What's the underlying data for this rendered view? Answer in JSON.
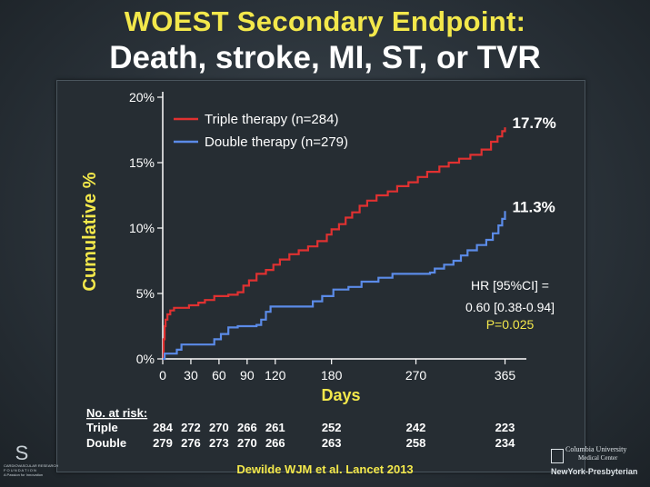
{
  "slide": {
    "title_line1": "WOEST Secondary Endpoint:",
    "title_line2": "Death, stroke, MI, ST, or TVR",
    "citation": "Dewilde WJM et al. Lancet 2013"
  },
  "logos": {
    "left_glyph": "S",
    "left_line1": "CARDIOVASCULAR RESEARCH",
    "left_line2": "F O U N D A T I O N",
    "left_line3": "A Passion for Innovation",
    "right_line1": "Columbia University",
    "right_line2": "Medical Center",
    "right_line3": "NewYork-Presbyterian"
  },
  "colors": {
    "triple": "#e03131",
    "double": "#5b8be8",
    "axis_text": "#ffffff",
    "accent_yellow": "#f3e84b"
  },
  "chart_data": {
    "type": "line",
    "title": "",
    "xlabel": "Days",
    "ylabel": "Cumulative %",
    "x_ticks": [
      0,
      30,
      60,
      90,
      120,
      180,
      270,
      365
    ],
    "y_ticks": [
      "0%",
      "5%",
      "10%",
      "15%",
      "20%"
    ],
    "y_tick_values": [
      0,
      5,
      10,
      15,
      20
    ],
    "xlim": [
      0,
      380
    ],
    "ylim": [
      0,
      20
    ],
    "legend_position": "top-left",
    "series": [
      {
        "name": "Triple therapy (n=284)",
        "color": "#e03131",
        "end_label": "17.7%",
        "points": [
          [
            0,
            0
          ],
          [
            1,
            1.5
          ],
          [
            2,
            2.5
          ],
          [
            3,
            3.0
          ],
          [
            5,
            3.4
          ],
          [
            8,
            3.7
          ],
          [
            12,
            3.9
          ],
          [
            20,
            3.9
          ],
          [
            28,
            4.1
          ],
          [
            38,
            4.3
          ],
          [
            45,
            4.5
          ],
          [
            55,
            4.8
          ],
          [
            70,
            4.9
          ],
          [
            80,
            5.1
          ],
          [
            86,
            5.6
          ],
          [
            92,
            6.0
          ],
          [
            100,
            6.5
          ],
          [
            110,
            6.8
          ],
          [
            118,
            7.2
          ],
          [
            125,
            7.6
          ],
          [
            135,
            8.0
          ],
          [
            145,
            8.3
          ],
          [
            155,
            8.6
          ],
          [
            165,
            9.0
          ],
          [
            175,
            9.5
          ],
          [
            180,
            9.9
          ],
          [
            188,
            10.3
          ],
          [
            195,
            10.8
          ],
          [
            202,
            11.2
          ],
          [
            210,
            11.7
          ],
          [
            218,
            12.1
          ],
          [
            228,
            12.5
          ],
          [
            240,
            12.8
          ],
          [
            250,
            13.2
          ],
          [
            262,
            13.5
          ],
          [
            272,
            13.9
          ],
          [
            282,
            14.3
          ],
          [
            295,
            14.7
          ],
          [
            305,
            15.0
          ],
          [
            316,
            15.3
          ],
          [
            328,
            15.6
          ],
          [
            340,
            16.0
          ],
          [
            350,
            16.6
          ],
          [
            357,
            17.0
          ],
          [
            362,
            17.4
          ],
          [
            365,
            17.7
          ]
        ]
      },
      {
        "name": "Double therapy (n=279)",
        "color": "#5b8be8",
        "end_label": "11.3%",
        "points": [
          [
            0,
            0
          ],
          [
            2,
            0.4
          ],
          [
            10,
            0.4
          ],
          [
            15,
            0.7
          ],
          [
            20,
            1.1
          ],
          [
            40,
            1.1
          ],
          [
            55,
            1.5
          ],
          [
            62,
            1.9
          ],
          [
            70,
            2.4
          ],
          [
            80,
            2.5
          ],
          [
            100,
            2.6
          ],
          [
            105,
            3.0
          ],
          [
            110,
            3.6
          ],
          [
            115,
            4.0
          ],
          [
            130,
            4.0
          ],
          [
            145,
            4.0
          ],
          [
            160,
            4.4
          ],
          [
            170,
            4.8
          ],
          [
            182,
            5.3
          ],
          [
            198,
            5.5
          ],
          [
            212,
            5.9
          ],
          [
            230,
            6.2
          ],
          [
            245,
            6.5
          ],
          [
            260,
            6.5
          ],
          [
            270,
            6.5
          ],
          [
            285,
            6.6
          ],
          [
            290,
            6.9
          ],
          [
            300,
            7.2
          ],
          [
            310,
            7.5
          ],
          [
            318,
            7.9
          ],
          [
            325,
            8.3
          ],
          [
            335,
            8.7
          ],
          [
            345,
            9.1
          ],
          [
            352,
            9.6
          ],
          [
            358,
            10.2
          ],
          [
            362,
            10.7
          ],
          [
            365,
            11.3
          ]
        ]
      }
    ],
    "annotation": {
      "hr_line1": "HR [95%CI] =",
      "hr_line2": "0.60 [0.38-0.94]",
      "p_value": "P=0.025"
    },
    "risk_table": {
      "header": "No. at risk:",
      "rows": [
        {
          "label": "Triple",
          "values": [
            284,
            272,
            270,
            266,
            261,
            252,
            242,
            223
          ]
        },
        {
          "label": "Double",
          "values": [
            279,
            276,
            273,
            270,
            266,
            263,
            258,
            234
          ]
        }
      ]
    }
  }
}
